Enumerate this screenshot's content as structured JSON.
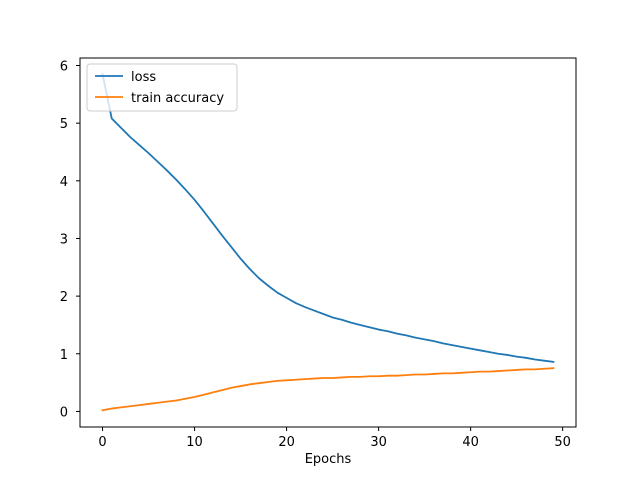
{
  "chart_data": {
    "type": "line",
    "title": "",
    "xlabel": "Epochs",
    "ylabel": "",
    "xlim": [
      -2.45,
      51.45
    ],
    "ylim": [
      -0.27,
      6.13
    ],
    "xticks": [
      0,
      10,
      20,
      30,
      40,
      50
    ],
    "yticks": [
      0,
      1,
      2,
      3,
      4,
      5,
      6
    ],
    "grid": false,
    "legend_position": "top-left",
    "x": [
      0,
      1,
      2,
      3,
      4,
      5,
      6,
      7,
      8,
      9,
      10,
      11,
      12,
      13,
      14,
      15,
      16,
      17,
      18,
      19,
      20,
      21,
      22,
      23,
      24,
      25,
      26,
      27,
      28,
      29,
      30,
      31,
      32,
      33,
      34,
      35,
      36,
      37,
      38,
      38.99,
      40,
      41,
      42,
      43,
      44,
      45,
      46,
      47,
      48,
      49
    ],
    "series": [
      {
        "name": "loss",
        "color": "#1f77b4",
        "values": [
          5.85,
          5.08,
          4.92,
          4.76,
          4.62,
          4.48,
          4.33,
          4.18,
          4.02,
          3.85,
          3.67,
          3.47,
          3.26,
          3.05,
          2.85,
          2.65,
          2.47,
          2.31,
          2.18,
          2.06,
          1.97,
          1.88,
          1.81,
          1.75,
          1.69,
          1.63,
          1.59,
          1.54,
          1.5,
          1.46,
          1.42,
          1.39,
          1.35,
          1.32,
          1.28,
          1.25,
          1.22,
          1.18,
          1.15,
          1.12,
          1.09,
          1.06,
          1.03,
          1.0,
          0.98,
          0.95,
          0.93,
          0.9,
          0.88,
          0.86
        ]
      },
      {
        "name": "train accuracy",
        "color": "#ff7f0e",
        "values": [
          0.02,
          0.05,
          0.07,
          0.09,
          0.11,
          0.13,
          0.15,
          0.17,
          0.19,
          0.22,
          0.25,
          0.29,
          0.33,
          0.37,
          0.41,
          0.44,
          0.47,
          0.49,
          0.51,
          0.53,
          0.54,
          0.55,
          0.56,
          0.57,
          0.58,
          0.58,
          0.59,
          0.6,
          0.6,
          0.61,
          0.61,
          0.62,
          0.62,
          0.63,
          0.64,
          0.64,
          0.65,
          0.66,
          0.66,
          0.67,
          0.68,
          0.69,
          0.69,
          0.7,
          0.71,
          0.72,
          0.73,
          0.73,
          0.74,
          0.75
        ]
      }
    ]
  }
}
